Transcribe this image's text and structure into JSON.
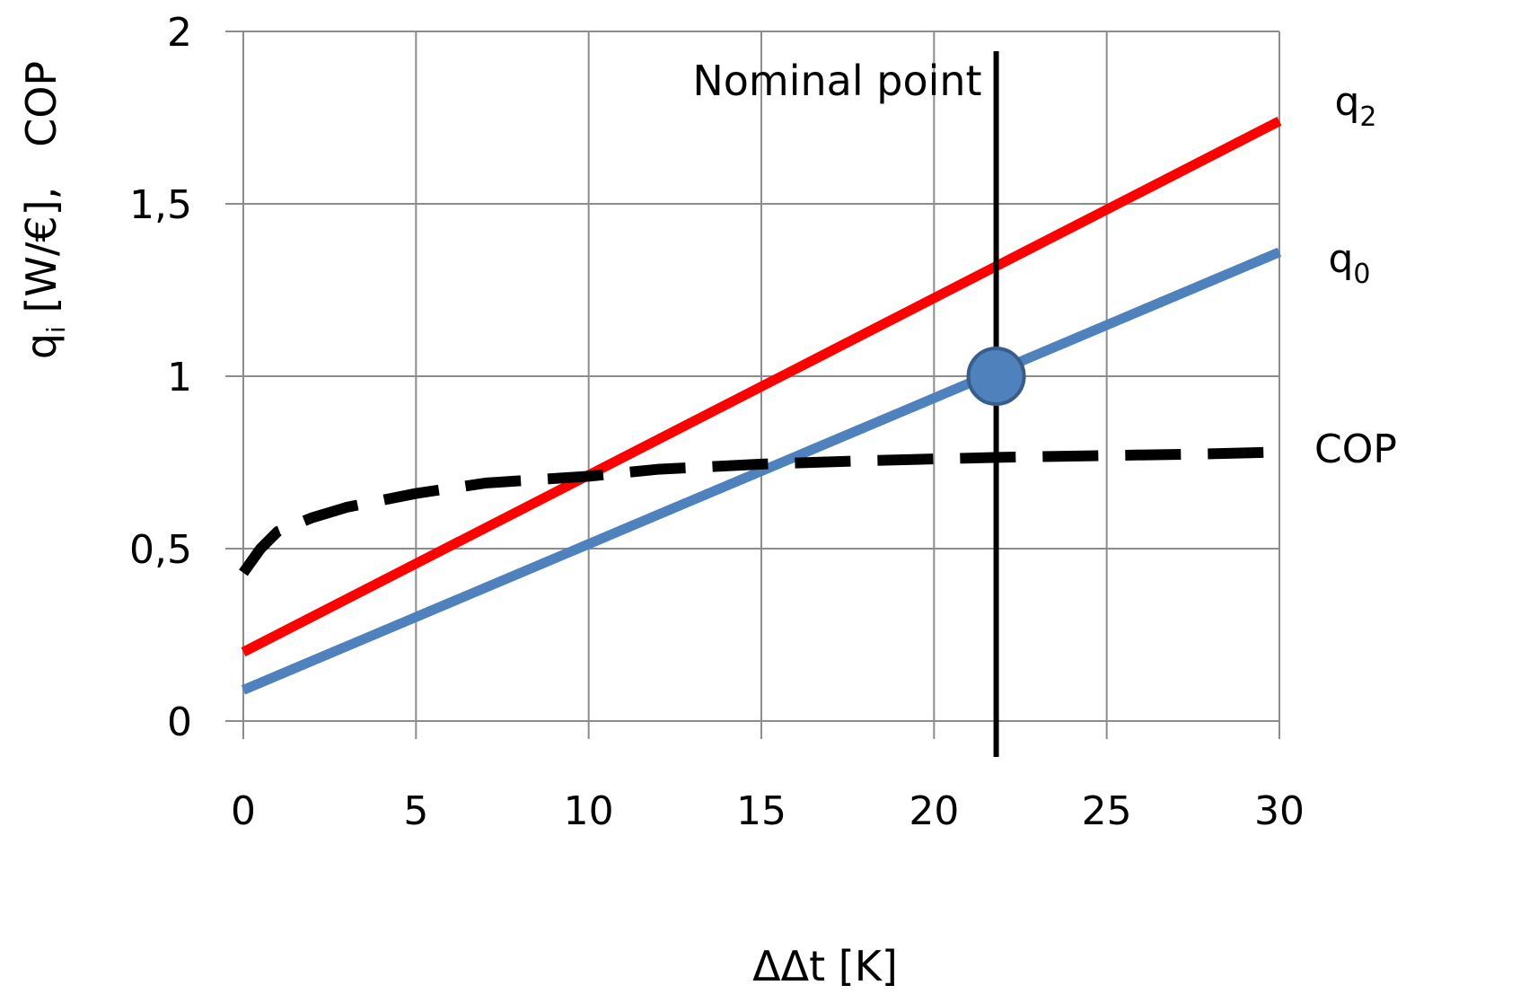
{
  "chart_data": {
    "type": "line",
    "title": "",
    "xlabel": "ΔΔt [K]",
    "ylabel": {
      "q_main": "q",
      "q_sub": "i",
      "rest": " [W/€],   COP"
    },
    "xlim": [
      0,
      30
    ],
    "ylim": [
      0,
      2
    ],
    "x_ticks": [
      {
        "value": 0,
        "label": "0"
      },
      {
        "value": 5,
        "label": "5"
      },
      {
        "value": 10,
        "label": "10"
      },
      {
        "value": 15,
        "label": "15"
      },
      {
        "value": 20,
        "label": "20"
      },
      {
        "value": 25,
        "label": "25"
      },
      {
        "value": 30,
        "label": "30"
      }
    ],
    "y_ticks": [
      {
        "value": 0,
        "label": "0"
      },
      {
        "value": 0.5,
        "label": "0,5"
      },
      {
        "value": 1,
        "label": "1"
      },
      {
        "value": 1.5,
        "label": "1,5"
      },
      {
        "value": 2,
        "label": "2"
      }
    ],
    "grid": true,
    "series": [
      {
        "name": "q2",
        "label_main": "q",
        "label_sub": "2",
        "color": "#ff0000",
        "style": "solid",
        "x": [
          0,
          30
        ],
        "y": [
          0.2,
          1.74
        ]
      },
      {
        "name": "q0",
        "label_main": "q",
        "label_sub": "0",
        "color": "#4f81bd",
        "style": "solid",
        "x": [
          0,
          30
        ],
        "y": [
          0.09,
          1.36
        ]
      },
      {
        "name": "COP",
        "label_main": "COP",
        "label_sub": "",
        "color": "#000000",
        "style": "dashed",
        "x": [
          0,
          0.5,
          1,
          2,
          3,
          5,
          7,
          10,
          12,
          15,
          18,
          20,
          22,
          25,
          28,
          30
        ],
        "y": [
          0.43,
          0.5,
          0.55,
          0.59,
          0.62,
          0.66,
          0.69,
          0.71,
          0.73,
          0.745,
          0.755,
          0.76,
          0.765,
          0.77,
          0.775,
          0.78
        ]
      }
    ],
    "annotations": {
      "nominal_label": "Nominal point",
      "nominal_x": 21.8,
      "nominal_point": {
        "x": 21.8,
        "y": 1.0,
        "color": "#4f81bd",
        "edge": "#385d8a"
      }
    }
  }
}
